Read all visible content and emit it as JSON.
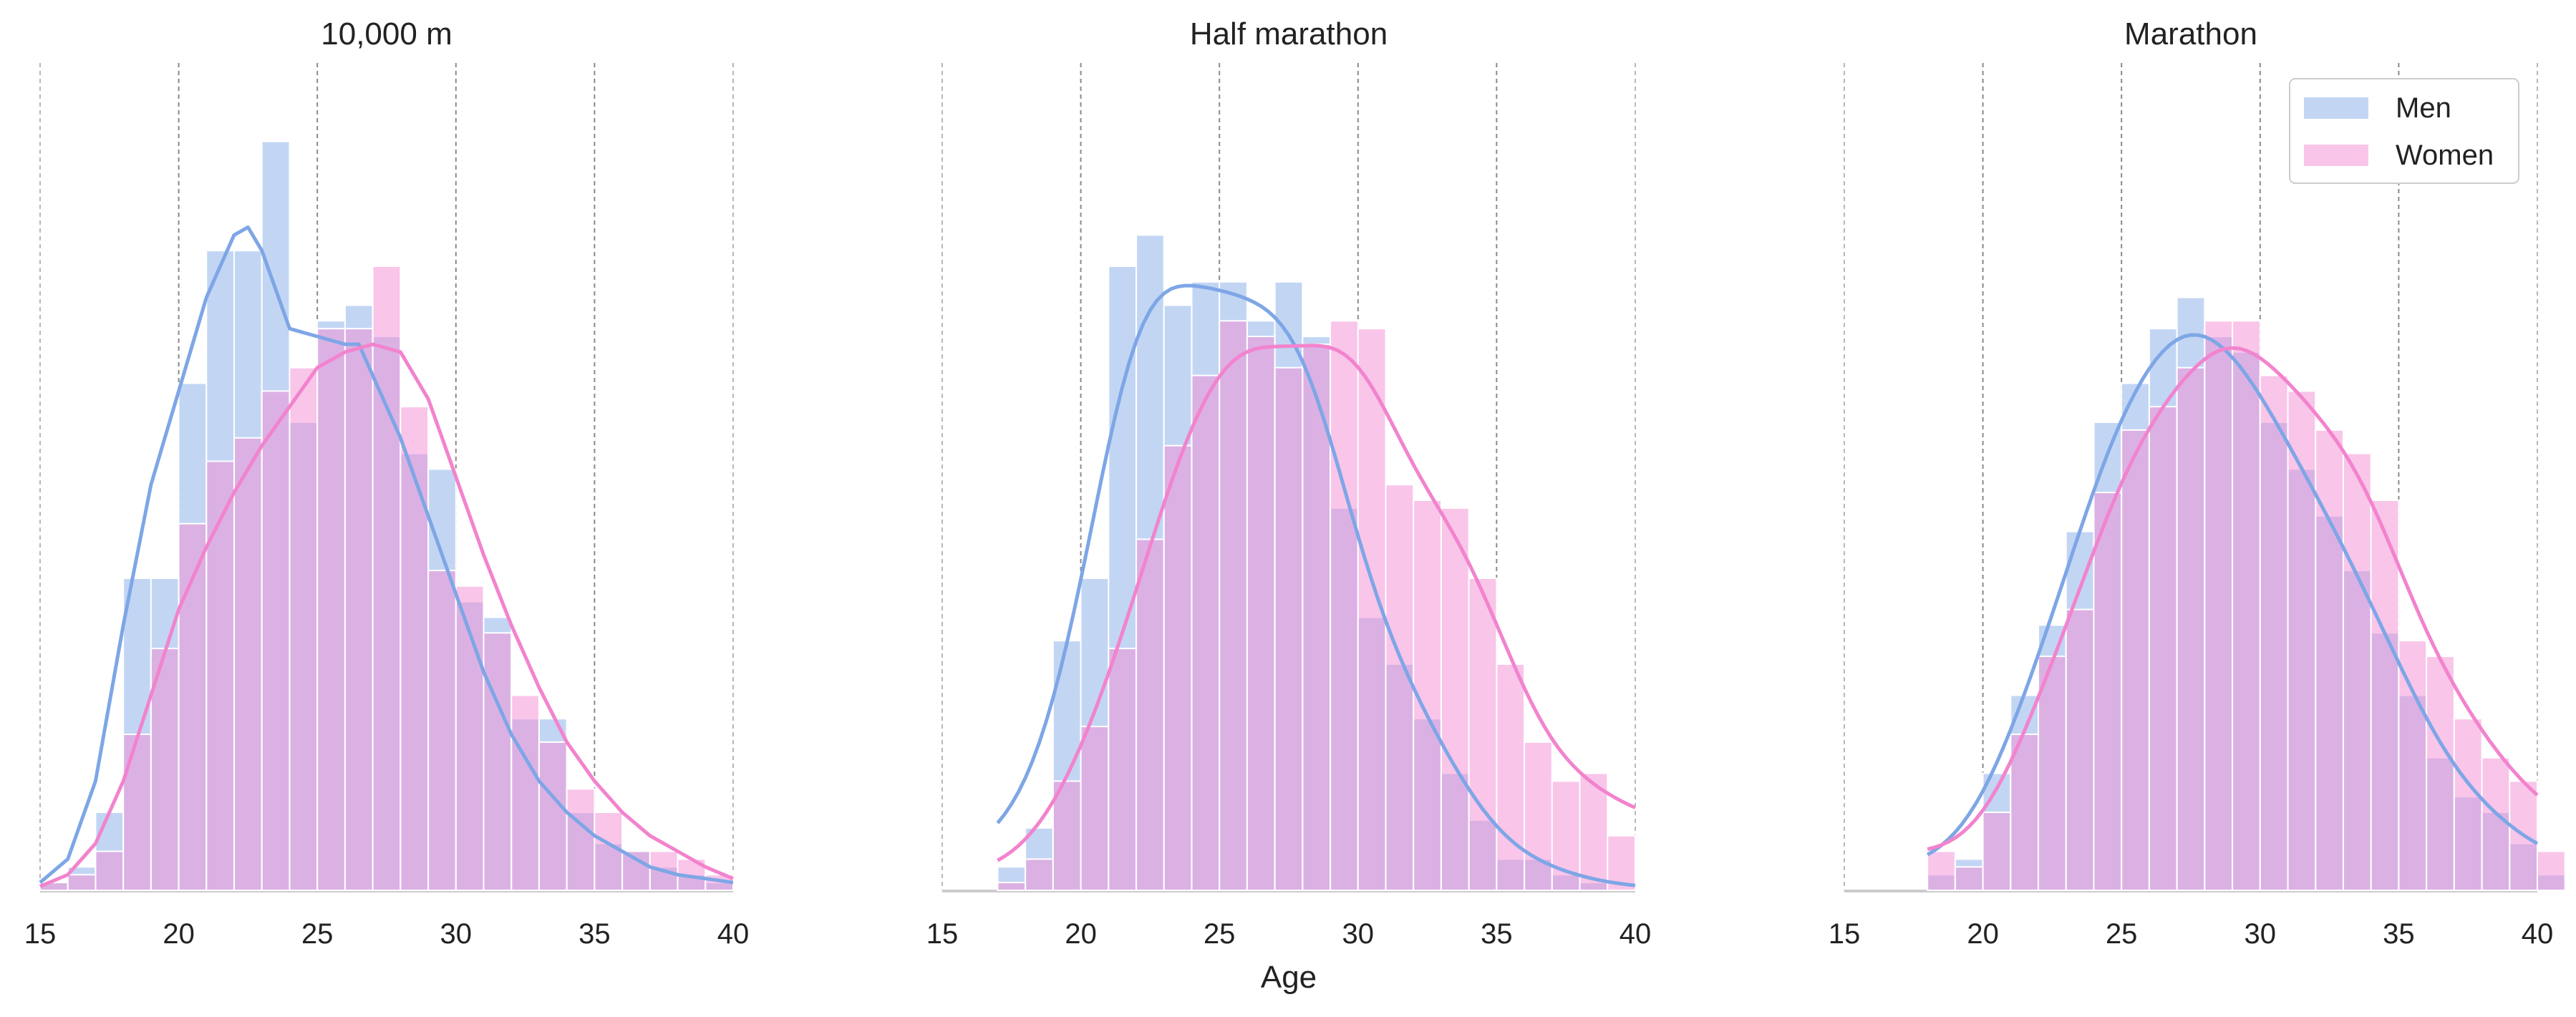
{
  "figure": {
    "xlabel": "Age"
  },
  "legend": {
    "placement": "top-right of third panel",
    "entries": [
      {
        "label": "Men",
        "color": "#86aeea"
      },
      {
        "label": "Women",
        "color": "#f38bd3"
      }
    ]
  },
  "colors": {
    "men_bar": "#86aeea",
    "women_bar": "#f38bd3",
    "men_line": "#7ea6e6",
    "women_line": "#f283cd",
    "grid": "#8a8a8a"
  },
  "chart_data": [
    {
      "type": "histogram",
      "title": "10,000 m",
      "xlim": [
        15,
        40
      ],
      "xticks": [
        "15",
        "20",
        "25",
        "30",
        "35",
        "40"
      ],
      "bin_start": 15,
      "bin_width": 1,
      "men_counts": [
        1,
        3,
        10,
        40,
        40,
        65,
        82,
        82,
        96,
        60,
        73,
        75,
        71,
        56,
        54,
        37,
        35,
        22,
        22,
        10,
        6,
        5,
        3,
        2,
        1
      ],
      "women_counts": [
        1,
        2,
        5,
        20,
        31,
        47,
        55,
        58,
        64,
        67,
        72,
        72,
        80,
        62,
        41,
        39,
        33,
        25,
        19,
        13,
        10,
        5,
        5,
        4,
        2
      ],
      "men_kde": [
        [
          15,
          1
        ],
        [
          16,
          4
        ],
        [
          17,
          14
        ],
        [
          18,
          34
        ],
        [
          19,
          52
        ],
        [
          20,
          64
        ],
        [
          21,
          76
        ],
        [
          22,
          84
        ],
        [
          22.5,
          85
        ],
        [
          23,
          82
        ],
        [
          24,
          72
        ],
        [
          25,
          71
        ],
        [
          26,
          70
        ],
        [
          26.5,
          70
        ],
        [
          27,
          66
        ],
        [
          28,
          58
        ],
        [
          29,
          48
        ],
        [
          30,
          38
        ],
        [
          31,
          28
        ],
        [
          32,
          20
        ],
        [
          33,
          14
        ],
        [
          34,
          10
        ],
        [
          35,
          7
        ],
        [
          36,
          5
        ],
        [
          37,
          3
        ],
        [
          38,
          2
        ],
        [
          40,
          1
        ]
      ],
      "women_kde": [
        [
          15,
          0.5
        ],
        [
          16,
          2
        ],
        [
          17,
          6
        ],
        [
          18,
          14
        ],
        [
          19,
          25
        ],
        [
          20,
          36
        ],
        [
          21,
          44
        ],
        [
          22,
          51
        ],
        [
          23,
          57
        ],
        [
          24,
          62
        ],
        [
          25,
          67
        ],
        [
          26,
          69
        ],
        [
          27,
          70
        ],
        [
          28,
          69
        ],
        [
          29,
          63
        ],
        [
          30,
          53
        ],
        [
          31,
          43
        ],
        [
          32,
          34
        ],
        [
          33,
          26
        ],
        [
          34,
          19
        ],
        [
          35,
          14
        ],
        [
          36,
          10
        ],
        [
          37,
          7
        ],
        [
          38,
          5
        ],
        [
          39,
          3
        ],
        [
          40,
          1.5
        ]
      ]
    },
    {
      "type": "histogram",
      "title": "Half marathon",
      "xlim": [
        15,
        40
      ],
      "xticks": [
        "15",
        "20",
        "25",
        "30",
        "35",
        "40"
      ],
      "bin_start": 17,
      "bin_width": 1,
      "men_counts": [
        3,
        8,
        32,
        40,
        80,
        84,
        75,
        78,
        78,
        73,
        78,
        71,
        49,
        35,
        29,
        22,
        15,
        9,
        4,
        4,
        2,
        1,
        0
      ],
      "women_counts": [
        1,
        4,
        14,
        21,
        31,
        45,
        57,
        66,
        73,
        71,
        67,
        70,
        73,
        72,
        52,
        50,
        49,
        40,
        29,
        19,
        14,
        15,
        7
      ]
    },
    {
      "type": "histogram",
      "title": "Marathon",
      "xlim": [
        15,
        40
      ],
      "xticks": [
        "15",
        "20",
        "25",
        "30",
        "35",
        "40"
      ],
      "bin_start": 18,
      "bin_width": 1,
      "men_counts": [
        2,
        4,
        15,
        25,
        34,
        46,
        60,
        65,
        72,
        76,
        71,
        69,
        60,
        54,
        48,
        41,
        33,
        25,
        17,
        12,
        10,
        6,
        2
      ],
      "women_counts": [
        5,
        3,
        10,
        20,
        30,
        36,
        51,
        59,
        62,
        67,
        73,
        73,
        66,
        64,
        59,
        56,
        50,
        32,
        30,
        22,
        17,
        14,
        5
      ]
    }
  ]
}
